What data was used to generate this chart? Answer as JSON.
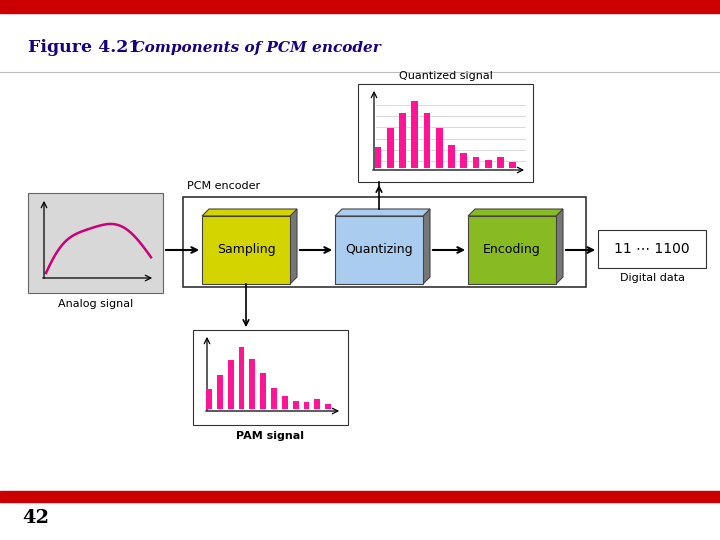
{
  "title_bold": "Figure 4.21",
  "title_italic": "  Components of PCM encoder",
  "page_number": "42",
  "bg_color": "#ffffff",
  "red_color": "#cc0000",
  "title_color": "#1a0080",
  "analog_signal_color": "#cc0077",
  "pam_bar_color": "#ff1493",
  "quantized_bar_color": "#ff1493",
  "sampling_box_color": "#d4d400",
  "quantizing_box_color": "#aaccee",
  "encoding_box_color": "#88bb22",
  "box_shadow_color": "#999999",
  "analog_box_bg": "#d8d8d8",
  "text_color": "#000000",
  "pam_bars": [
    0.28,
    0.48,
    0.7,
    0.88,
    0.72,
    0.52,
    0.3,
    0.18,
    0.12,
    0.1,
    0.14,
    0.07
  ],
  "quantized_bars": [
    0.28,
    0.52,
    0.72,
    0.88,
    0.72,
    0.52,
    0.3,
    0.2,
    0.14,
    0.1,
    0.15,
    0.08
  ]
}
